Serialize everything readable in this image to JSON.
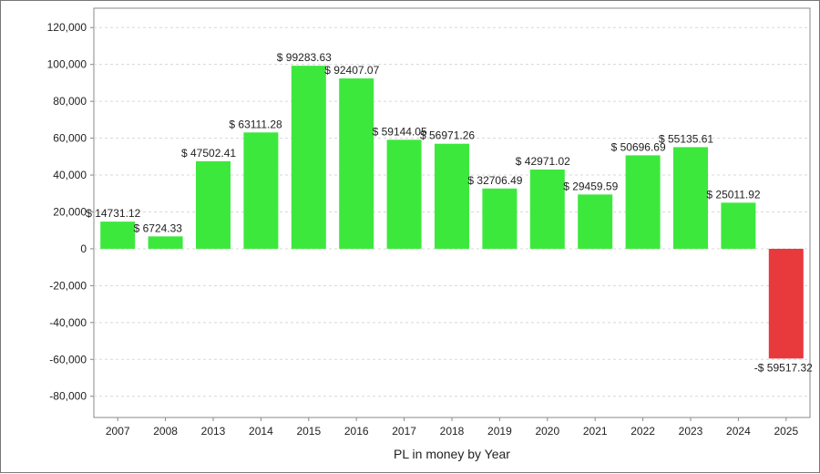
{
  "chart_data": {
    "type": "bar",
    "title": "",
    "xlabel": "PL in money by Year",
    "ylabel": "",
    "categories": [
      "2007",
      "2008",
      "2013",
      "2014",
      "2015",
      "2016",
      "2017",
      "2018",
      "2019",
      "2020",
      "2021",
      "2022",
      "2023",
      "2024",
      "2025"
    ],
    "values": [
      14731.12,
      6724.33,
      47502.41,
      63111.28,
      99283.63,
      92407.07,
      59144.05,
      56971.26,
      32706.49,
      42971.02,
      29459.59,
      50696.69,
      55135.61,
      25011.92,
      -59517.32
    ],
    "data_labels": [
      "$ 14731.12",
      "$ 6724.33",
      "$ 47502.41",
      "$ 63111.28",
      "$ 99283.63",
      "$ 92407.07",
      "$ 59144.05",
      "$ 56971.26",
      "$ 32706.49",
      "$ 42971.02",
      "$ 29459.59",
      "$ 50696.69",
      "$ 55135.61",
      "$ 25011.92",
      "-$ 59517.32"
    ],
    "yticks": [
      -80000,
      -60000,
      -40000,
      -20000,
      0,
      20000,
      40000,
      60000,
      80000,
      100000,
      120000
    ],
    "ytick_labels": [
      "-80,000",
      "-60,000",
      "-40,000",
      "-20,000",
      "0",
      "20,000",
      "40,000",
      "60,000",
      "80,000",
      "100,000",
      "120,000"
    ],
    "ylim": [
      -91500,
      130500
    ],
    "grid": true,
    "colors": {
      "positive": "#3de83d",
      "negative": "#e8393d",
      "grid": "#d8d8d8",
      "axis": "#888888"
    }
  }
}
